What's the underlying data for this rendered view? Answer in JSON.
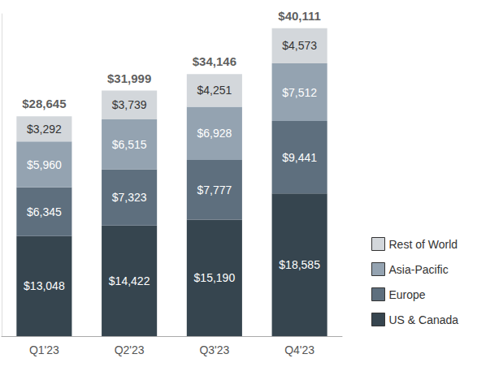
{
  "chart_data": {
    "type": "bar",
    "stacked": true,
    "data_labels": true,
    "tick_labels": "x",
    "grid": false,
    "legend": "bottom right",
    "categories": [
      "Q1'23",
      "Q2'23",
      "Q3'23",
      "Q4'23"
    ],
    "ylim": [
      0,
      42000
    ],
    "series": [
      {
        "name": "US & Canada",
        "color": "#36454f",
        "values": [
          13048,
          14422,
          15190,
          18585
        ],
        "value_labels": [
          "$13,048",
          "$14,422",
          "$15,190",
          "$18,585"
        ]
      },
      {
        "name": "Europe",
        "color": "#5e6f7e",
        "values": [
          6345,
          7323,
          7777,
          9441
        ],
        "value_labels": [
          "$6,345",
          "$7,323",
          "$7,777",
          "$9,441"
        ]
      },
      {
        "name": "Asia-Pacific",
        "color": "#94a3b1",
        "values": [
          5960,
          6515,
          6928,
          7512
        ],
        "value_labels": [
          "$5,960",
          "$6,515",
          "$6,928",
          "$7,512"
        ]
      },
      {
        "name": "Rest of World",
        "color": "#d3d7db",
        "values": [
          3292,
          3739,
          4251,
          4573
        ],
        "value_labels": [
          "$3,292",
          "$3,739",
          "$4,251",
          "$4,573"
        ]
      }
    ],
    "totals": [
      28645,
      31999,
      34146,
      40111
    ],
    "total_labels": [
      "$28,645",
      "$31,999",
      "$34,146",
      "$40,111"
    ]
  }
}
